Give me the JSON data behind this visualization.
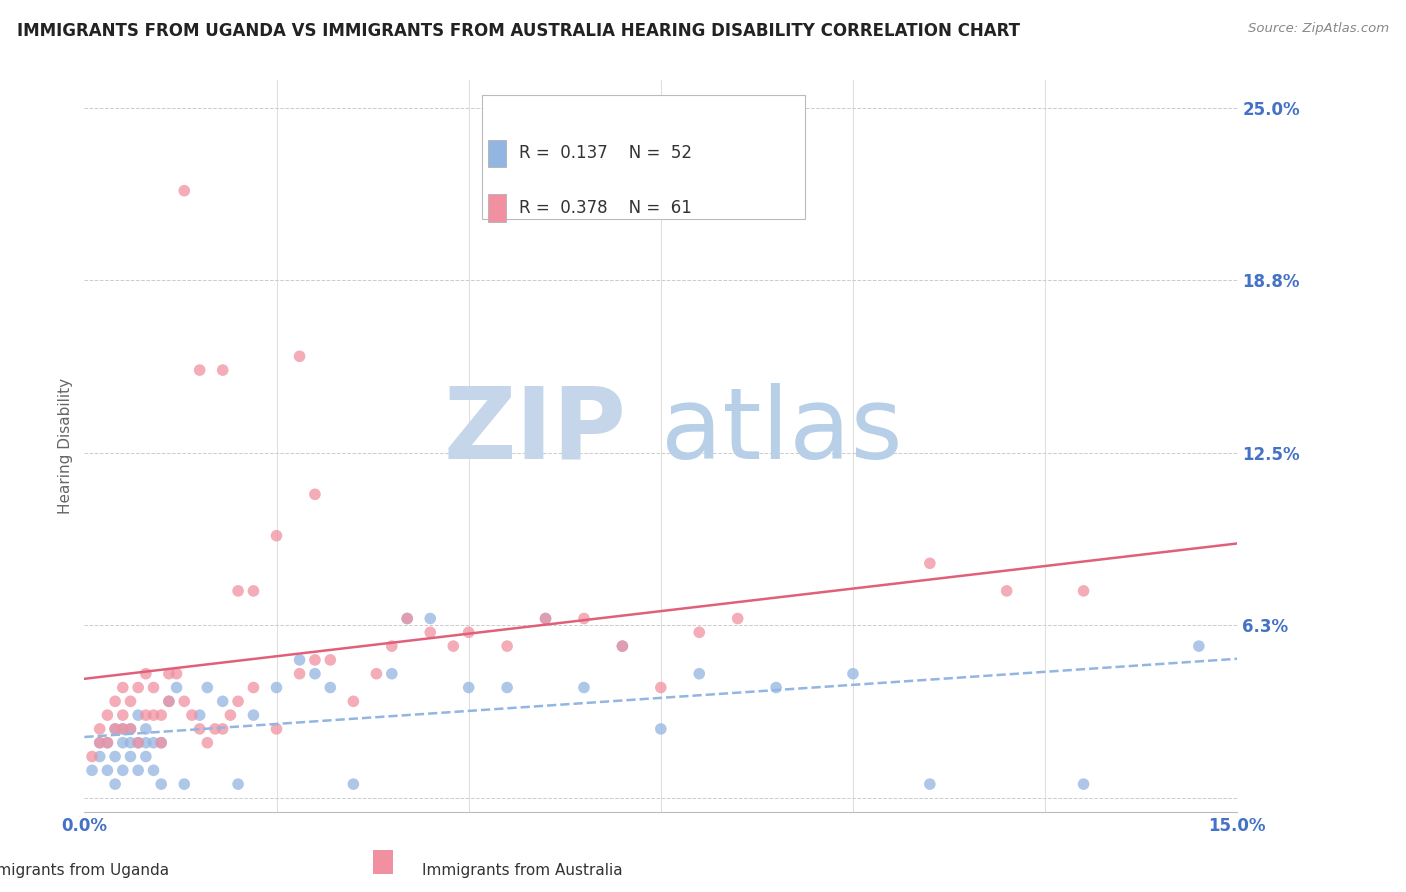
{
  "title": "IMMIGRANTS FROM UGANDA VS IMMIGRANTS FROM AUSTRALIA HEARING DISABILITY CORRELATION CHART",
  "source": "Source: ZipAtlas.com",
  "ylabel": "Hearing Disability",
  "xlim": [
    0.0,
    0.15
  ],
  "ylim": [
    -0.005,
    0.26
  ],
  "yticks": [
    0.0,
    0.0625,
    0.125,
    0.1875,
    0.25
  ],
  "ytick_labels": [
    "",
    "6.3%",
    "12.5%",
    "18.8%",
    "25.0%"
  ],
  "xticks": [
    0.0,
    0.025,
    0.05,
    0.075,
    0.1,
    0.125,
    0.15
  ],
  "uganda_color": "#93b5e1",
  "australia_color": "#f090a0",
  "uganda_R": "0.137",
  "uganda_N": "52",
  "australia_R": "0.378",
  "australia_N": "61",
  "title_color": "#222222",
  "tick_label_color": "#4472c4",
  "watermark_zip": "ZIP",
  "watermark_atlas": "atlas",
  "watermark_color_zip": "#c5d5ea",
  "watermark_color_atlas": "#b8cfe8",
  "legend_label_uganda": "Immigrants from Uganda",
  "legend_label_australia": "Immigrants from Australia",
  "uganda_x": [
    0.001,
    0.002,
    0.002,
    0.003,
    0.003,
    0.004,
    0.004,
    0.004,
    0.005,
    0.005,
    0.005,
    0.006,
    0.006,
    0.006,
    0.007,
    0.007,
    0.007,
    0.008,
    0.008,
    0.008,
    0.009,
    0.009,
    0.01,
    0.01,
    0.011,
    0.012,
    0.013,
    0.015,
    0.016,
    0.018,
    0.02,
    0.022,
    0.025,
    0.028,
    0.03,
    0.032,
    0.035,
    0.04,
    0.042,
    0.045,
    0.05,
    0.055,
    0.06,
    0.065,
    0.07,
    0.075,
    0.08,
    0.09,
    0.1,
    0.11,
    0.13,
    0.145
  ],
  "uganda_y": [
    0.01,
    0.015,
    0.02,
    0.01,
    0.02,
    0.005,
    0.015,
    0.025,
    0.01,
    0.02,
    0.025,
    0.015,
    0.02,
    0.025,
    0.01,
    0.02,
    0.03,
    0.015,
    0.02,
    0.025,
    0.01,
    0.02,
    0.005,
    0.02,
    0.035,
    0.04,
    0.005,
    0.03,
    0.04,
    0.035,
    0.005,
    0.03,
    0.04,
    0.05,
    0.045,
    0.04,
    0.005,
    0.045,
    0.065,
    0.065,
    0.04,
    0.04,
    0.065,
    0.04,
    0.055,
    0.025,
    0.045,
    0.04,
    0.045,
    0.005,
    0.005,
    0.055
  ],
  "australia_x": [
    0.001,
    0.002,
    0.002,
    0.003,
    0.003,
    0.004,
    0.004,
    0.005,
    0.005,
    0.005,
    0.006,
    0.006,
    0.007,
    0.007,
    0.008,
    0.008,
    0.009,
    0.009,
    0.01,
    0.01,
    0.011,
    0.011,
    0.012,
    0.013,
    0.014,
    0.015,
    0.016,
    0.017,
    0.018,
    0.019,
    0.02,
    0.022,
    0.025,
    0.028,
    0.03,
    0.032,
    0.035,
    0.038,
    0.04,
    0.042,
    0.045,
    0.048,
    0.05,
    0.055,
    0.06,
    0.065,
    0.07,
    0.075,
    0.08,
    0.085,
    0.025,
    0.018,
    0.03,
    0.02,
    0.013,
    0.015,
    0.022,
    0.028,
    0.11,
    0.12,
    0.13
  ],
  "australia_y": [
    0.015,
    0.02,
    0.025,
    0.02,
    0.03,
    0.025,
    0.035,
    0.025,
    0.03,
    0.04,
    0.025,
    0.035,
    0.02,
    0.04,
    0.03,
    0.045,
    0.03,
    0.04,
    0.02,
    0.03,
    0.035,
    0.045,
    0.045,
    0.035,
    0.03,
    0.025,
    0.02,
    0.025,
    0.025,
    0.03,
    0.035,
    0.04,
    0.025,
    0.045,
    0.05,
    0.05,
    0.035,
    0.045,
    0.055,
    0.065,
    0.06,
    0.055,
    0.06,
    0.055,
    0.065,
    0.065,
    0.055,
    0.04,
    0.06,
    0.065,
    0.095,
    0.155,
    0.11,
    0.075,
    0.22,
    0.155,
    0.075,
    0.16,
    0.085,
    0.075,
    0.075
  ]
}
